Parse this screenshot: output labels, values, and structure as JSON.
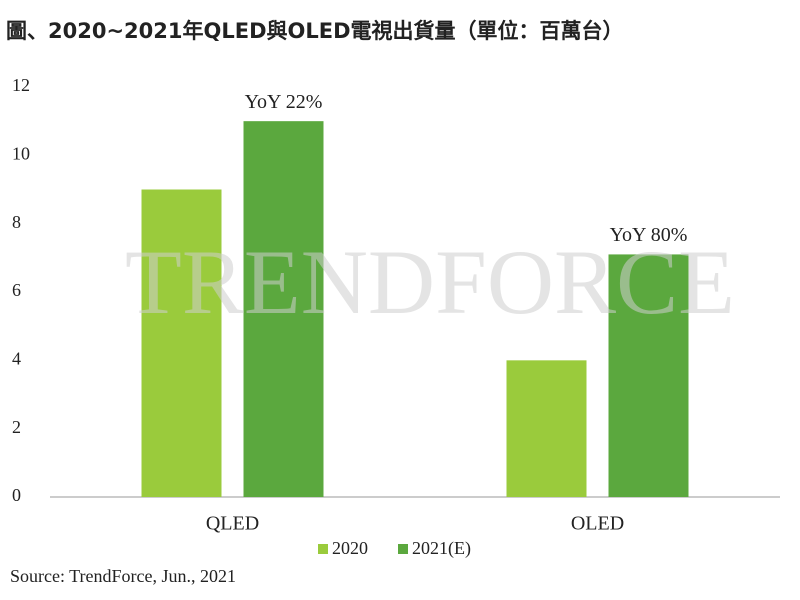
{
  "chart_data": {
    "type": "bar",
    "title": "圖、2020~2021年QLED與OLED電視出貨量（單位：百萬台）",
    "categories": [
      "QLED",
      "OLED"
    ],
    "series": [
      {
        "name": "2020",
        "color": "#9acb3c",
        "values": [
          9,
          4
        ]
      },
      {
        "name": "2021(E)",
        "color": "#5ba83e",
        "values": [
          11,
          7.1
        ]
      }
    ],
    "annotations": [
      "YoY 22%",
      "YoY 80%"
    ],
    "ylim": [
      0,
      12
    ],
    "yticks": [
      0,
      2,
      4,
      6,
      8,
      10,
      12
    ],
    "grid": false,
    "legend": "bottom",
    "watermark": "TRENDFORCE",
    "source": "Source: TrendForce, Jun., 2021"
  }
}
